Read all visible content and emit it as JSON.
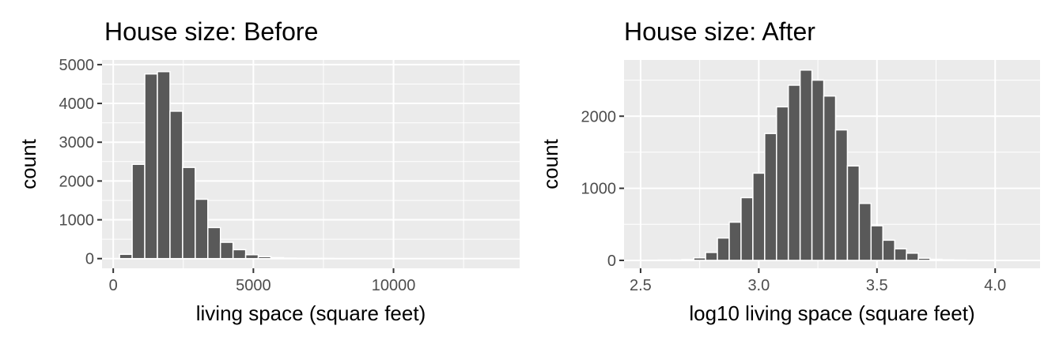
{
  "chart_data": [
    {
      "type": "bar",
      "title": "House size: Before",
      "xlabel": "living space (square feet)",
      "ylabel": "count",
      "xlim": [
        -400,
        14500
      ],
      "ylim": [
        -250,
        5120
      ],
      "x_ticks": [
        0,
        5000,
        10000
      ],
      "x_tick_labels": [
        "0",
        "5000",
        "10000"
      ],
      "x_minor_ticks": [
        2500,
        7500,
        12500
      ],
      "y_ticks": [
        0,
        1000,
        2000,
        3000,
        4000,
        5000
      ],
      "y_tick_labels": [
        "0",
        "1000",
        "2000",
        "3000",
        "4000",
        "5000"
      ],
      "grid": true,
      "bin_width": 450,
      "x": [
        450,
        900,
        1350,
        1800,
        2250,
        2700,
        3150,
        3600,
        4050,
        4500,
        4950,
        5400,
        5850,
        6300,
        6750,
        7200,
        7650
      ],
      "values": [
        110,
        2430,
        4760,
        4820,
        3800,
        2350,
        1530,
        800,
        420,
        230,
        100,
        50,
        25,
        12,
        8,
        5,
        3
      ]
    },
    {
      "type": "bar",
      "title": "House size: After",
      "xlabel": "log10 living space (square feet)",
      "ylabel": "count",
      "xlim": [
        2.43,
        4.19
      ],
      "ylim": [
        -110,
        2780
      ],
      "x_ticks": [
        2.5,
        3.0,
        3.5,
        4.0
      ],
      "x_tick_labels": [
        "2.5",
        "3.0",
        "3.5",
        "4.0"
      ],
      "x_minor_ticks": [
        2.75,
        3.25,
        3.75
      ],
      "y_ticks": [
        0,
        1000,
        2000
      ],
      "y_tick_labels": [
        "0",
        "1000",
        "2000"
      ],
      "grid": true,
      "bin_width": 0.05,
      "x": [
        2.5,
        2.55,
        2.6,
        2.65,
        2.7,
        2.75,
        2.8,
        2.85,
        2.9,
        2.95,
        3.0,
        3.05,
        3.1,
        3.15,
        3.2,
        3.25,
        3.3,
        3.35,
        3.4,
        3.45,
        3.5,
        3.55,
        3.6,
        3.65,
        3.7,
        3.75,
        3.8,
        3.85,
        3.9,
        3.95,
        4.0,
        4.05
      ],
      "values": [
        2,
        3,
        5,
        6,
        12,
        35,
        110,
        310,
        530,
        870,
        1210,
        1760,
        2130,
        2430,
        2640,
        2500,
        2280,
        1810,
        1310,
        790,
        480,
        280,
        160,
        100,
        30,
        15,
        8,
        5,
        3,
        2,
        1,
        1
      ]
    }
  ]
}
